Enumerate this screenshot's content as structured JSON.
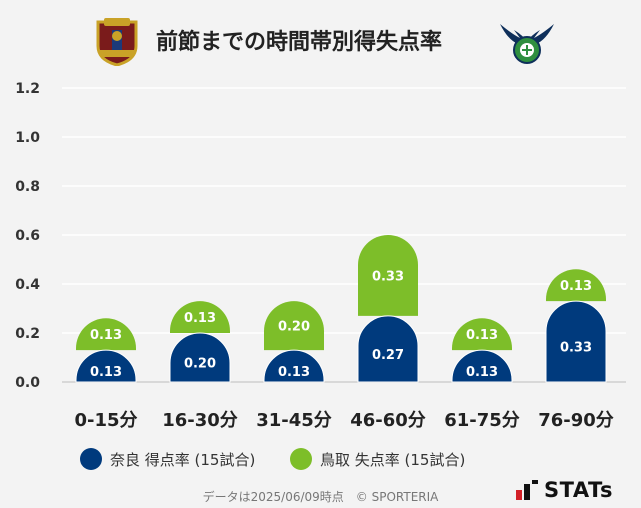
{
  "title": "前節までの時間帯別得失点率",
  "teams": {
    "left_logo": "nara-club-crest-icon",
    "right_logo": "gainare-tottori-crest-icon"
  },
  "chart_data": {
    "type": "bar",
    "stacked": true,
    "categories": [
      "0-15分",
      "16-30分",
      "31-45分",
      "46-60分",
      "61-75分",
      "76-90分"
    ],
    "series": [
      {
        "name": "奈良 得点率 (15試合)",
        "color": "#003A7D",
        "values": [
          0.13,
          0.2,
          0.13,
          0.27,
          0.13,
          0.33
        ],
        "labels": [
          "0.13",
          "0.20",
          "0.13",
          "0.27",
          "0.13",
          "0.33"
        ]
      },
      {
        "name": "鳥取 失点率 (15試合)",
        "color": "#7DBE29",
        "values": [
          0.13,
          0.13,
          0.2,
          0.33,
          0.13,
          0.13
        ],
        "labels": [
          "0.13",
          "0.13",
          "0.20",
          "0.33",
          "0.13",
          "0.13"
        ]
      }
    ],
    "yticks": [
      "0.0",
      "0.2",
      "0.4",
      "0.6",
      "0.8",
      "1.0",
      "1.2"
    ],
    "ylim": [
      0,
      1.2
    ],
    "grid": true,
    "legend_position": "bottom"
  },
  "legend": {
    "home": "奈良 得点率 (15試合)",
    "away": "鳥取 失点率 (15試合)"
  },
  "footer": "データは2025/06/09時点　© SPORTERIA",
  "brand": "STATs"
}
